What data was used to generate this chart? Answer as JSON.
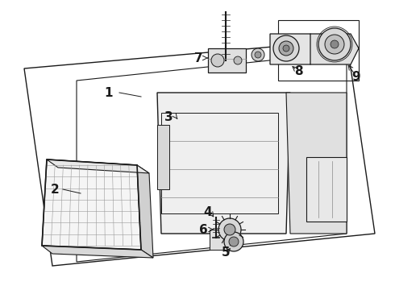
{
  "background_color": "#ffffff",
  "line_color": "#1a1a1a",
  "fig_width": 4.9,
  "fig_height": 3.6,
  "dpi": 100,
  "font_size": 10
}
